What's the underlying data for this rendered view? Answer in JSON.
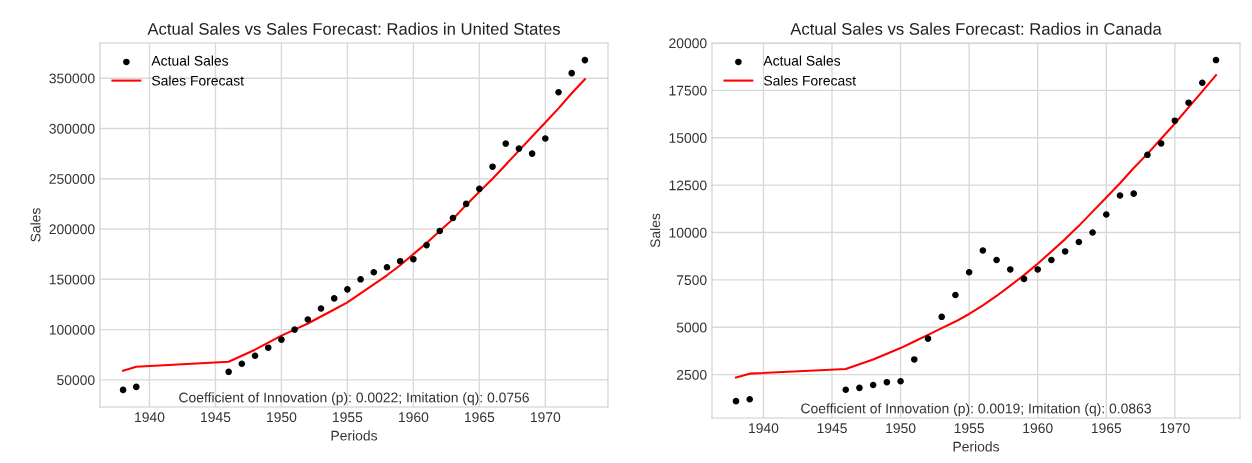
{
  "chart_data": [
    {
      "type": "line",
      "title": "Actual Sales vs Sales Forecast: Radios in United States",
      "xlabel": "Periods",
      "ylabel": "Sales",
      "xlim": [
        1936.25,
        1974.75
      ],
      "xticks": [
        1940,
        1945,
        1950,
        1955,
        1960,
        1965,
        1970
      ],
      "ylim": [
        23000,
        385000
      ],
      "yticks": [
        50000,
        100000,
        150000,
        200000,
        250000,
        300000,
        350000
      ],
      "grid": true,
      "legend": "top left",
      "annotations": [
        "Coefficient of Innovation (p): 0.0022; Imitation (q): 0.0756"
      ],
      "series": [
        {
          "name": "Actual Sales",
          "type": "scatter",
          "marker": "circle",
          "color": "#000000",
          "x": [
            1938,
            1939,
            1946,
            1947,
            1948,
            1949,
            1950,
            1951,
            1952,
            1953,
            1954,
            1955,
            1956,
            1957,
            1958,
            1959,
            1960,
            1961,
            1962,
            1963,
            1964,
            1965,
            1966,
            1967,
            1968,
            1969,
            1970,
            1971,
            1972,
            1973
          ],
          "values": [
            40000,
            43000,
            58000,
            66000,
            74000,
            82000,
            90000,
            100000,
            110000,
            121000,
            131000,
            140000,
            150000,
            157000,
            162000,
            168000,
            170000,
            184000,
            198000,
            211000,
            225000,
            240000,
            262000,
            285000,
            280000,
            275000,
            290000,
            336000,
            355000,
            368000
          ]
        },
        {
          "name": "Sales Forecast",
          "color": "#ff0000",
          "x": [
            1938,
            1939,
            1946,
            1947,
            1948,
            1949,
            1950,
            1951,
            1952,
            1953,
            1954,
            1955,
            1956,
            1957,
            1958,
            1959,
            1960,
            1961,
            1962,
            1963,
            1964,
            1965,
            1966,
            1967,
            1968,
            1969,
            1970,
            1971,
            1972,
            1973
          ],
          "values": [
            59000,
            63000,
            68000,
            74000,
            80000,
            87000,
            94000,
            100000,
            106000,
            113000,
            120000,
            127000,
            136000,
            145000,
            154000,
            164000,
            175000,
            186000,
            198000,
            210000,
            224000,
            237000,
            250000,
            264000,
            278000,
            292000,
            306000,
            320000,
            335000,
            349000
          ]
        }
      ]
    },
    {
      "type": "line",
      "title": "Actual Sales vs Sales Forecast: Radios in Canada",
      "xlabel": "Periods",
      "ylabel": "Sales",
      "xlim": [
        1936.25,
        1974.75
      ],
      "xticks": [
        1940,
        1945,
        1950,
        1955,
        1960,
        1965,
        1970
      ],
      "ylim": [
        210,
        20000
      ],
      "yticks": [
        2500,
        5000,
        7500,
        10000,
        12500,
        15000,
        17500,
        20000
      ],
      "grid": true,
      "legend": "top left",
      "annotations": [
        "Coefficient of Innovation (p): 0.0019; Imitation (q): 0.0863"
      ],
      "series": [
        {
          "name": "Actual Sales",
          "type": "scatter",
          "marker": "circle",
          "color": "#000000",
          "x": [
            1938,
            1939,
            1946,
            1947,
            1948,
            1949,
            1950,
            1951,
            1952,
            1953,
            1954,
            1955,
            1956,
            1957,
            1958,
            1959,
            1960,
            1961,
            1962,
            1963,
            1964,
            1965,
            1966,
            1967,
            1968,
            1969,
            1970,
            1971,
            1972,
            1973
          ],
          "values": [
            1100,
            1200,
            1700,
            1800,
            1950,
            2100,
            2150,
            3300,
            4400,
            5550,
            6700,
            7900,
            9050,
            8550,
            8050,
            7550,
            8050,
            8550,
            9000,
            9500,
            10000,
            10950,
            11950,
            12050,
            14100,
            14700,
            15900,
            16850,
            17900,
            19100
          ]
        },
        {
          "name": "Sales Forecast",
          "color": "#ff0000",
          "x": [
            1938,
            1939,
            1946,
            1947,
            1948,
            1949,
            1950,
            1951,
            1952,
            1953,
            1954,
            1955,
            1956,
            1957,
            1958,
            1959,
            1960,
            1961,
            1962,
            1963,
            1964,
            1965,
            1966,
            1967,
            1968,
            1969,
            1970,
            1971,
            1972,
            1973
          ],
          "values": [
            2350,
            2550,
            2800,
            3050,
            3300,
            3600,
            3900,
            4250,
            4600,
            4950,
            5300,
            5700,
            6150,
            6650,
            7200,
            7750,
            8350,
            9000,
            9650,
            10350,
            11100,
            11850,
            12600,
            13400,
            14150,
            14950,
            15750,
            16600,
            17450,
            18300
          ]
        }
      ]
    }
  ]
}
